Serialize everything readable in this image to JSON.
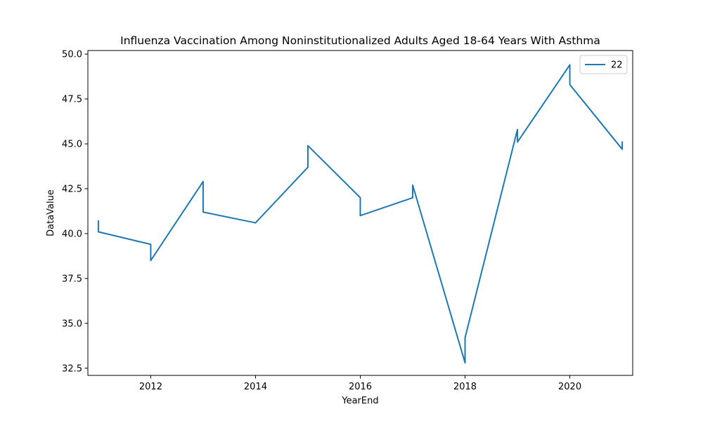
{
  "chart_data": {
    "type": "line",
    "title": "Influenza Vaccination Among Noninstitutionalized Adults Aged 18-64 Years With Asthma",
    "xlabel": "YearEnd",
    "ylabel": "DataValue",
    "xlim": [
      2010.8,
      2021.2
    ],
    "ylim": [
      32.1,
      50.2
    ],
    "xticks": [
      2012,
      2014,
      2016,
      2018,
      2020
    ],
    "xtick_labels": [
      "2012",
      "2014",
      "2016",
      "2018",
      "2020"
    ],
    "yticks": [
      32.5,
      35.0,
      37.5,
      40.0,
      42.5,
      45.0,
      47.5,
      50.0
    ],
    "ytick_labels": [
      "32.5",
      "35.0",
      "37.5",
      "40.0",
      "42.5",
      "45.0",
      "47.5",
      "50.0"
    ],
    "grid": false,
    "legend_position": "top-right",
    "series": [
      {
        "name": "22",
        "color": "#1f77b4",
        "x": [
          2011,
          2011,
          2012,
          2012,
          2013,
          2013,
          2014,
          2015,
          2015,
          2016,
          2016,
          2017,
          2017,
          2018,
          2018,
          2019,
          2019,
          2020,
          2020,
          2021,
          2021
        ],
        "y": [
          40.7,
          40.1,
          39.4,
          38.5,
          42.9,
          41.2,
          40.6,
          43.7,
          44.9,
          42.0,
          41.0,
          42.0,
          42.7,
          32.8,
          34.2,
          45.8,
          45.1,
          49.4,
          48.3,
          44.7,
          45.1
        ]
      }
    ]
  }
}
